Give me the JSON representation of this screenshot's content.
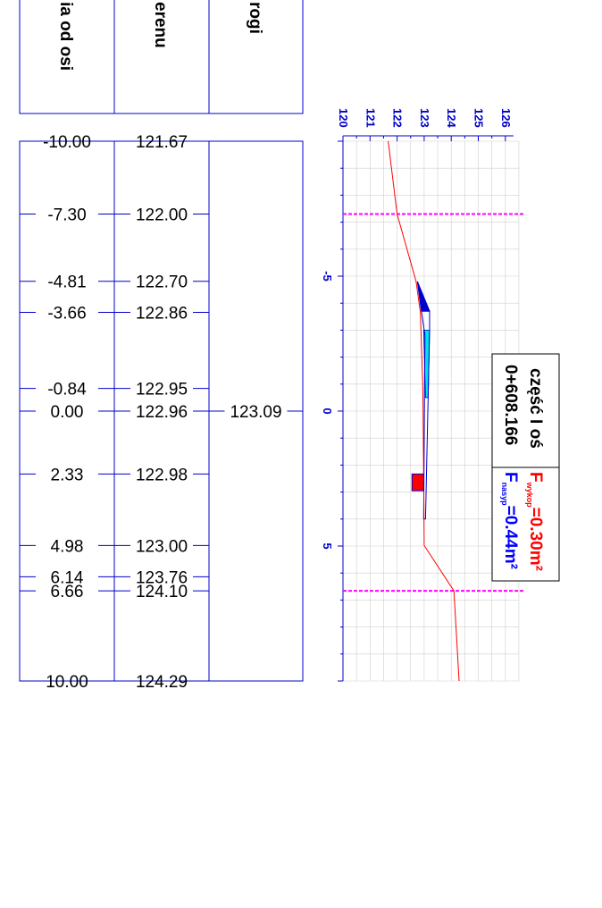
{
  "table": {
    "headers": [
      "ia od osi",
      "erenu",
      "rogi"
    ],
    "rows": [
      {
        "offset": "-10.00",
        "terrain": "121.67",
        "road": ""
      },
      {
        "offset": "-7.30",
        "terrain": "122.00",
        "road": ""
      },
      {
        "offset": "-4.81",
        "terrain": "122.70",
        "road": ""
      },
      {
        "offset": "-3.66",
        "terrain": "122.86",
        "road": ""
      },
      {
        "offset": "-0.84",
        "terrain": "122.95",
        "road": ""
      },
      {
        "offset": "0.00",
        "terrain": "122.96",
        "road": "123.09"
      },
      {
        "offset": "2.33",
        "terrain": "122.98",
        "road": ""
      },
      {
        "offset": "4.98",
        "terrain": "123.00",
        "road": ""
      },
      {
        "offset": "6.14",
        "terrain": "123.76",
        "road": ""
      },
      {
        "offset": "6.66",
        "terrain": "124.10",
        "road": ""
      },
      {
        "offset": "10.00",
        "terrain": "124.29",
        "road": ""
      }
    ]
  },
  "chart_data": {
    "type": "line",
    "x_ticks": [
      -5,
      0,
      5
    ],
    "x_tick_labels": [
      "-5",
      "0",
      "5"
    ],
    "xlim": [
      -10,
      10
    ],
    "y_ticks": [
      120,
      121,
      122,
      123,
      124,
      125,
      126
    ],
    "y_tick_labels": [
      "120",
      "121",
      "122",
      "123",
      "124",
      "125",
      "126"
    ],
    "ylim": [
      120,
      126.5
    ],
    "grid": true,
    "terrain": {
      "color": "#ff0000",
      "points": [
        [
          -10.0,
          121.67
        ],
        [
          -7.3,
          122.0
        ],
        [
          -4.81,
          122.7
        ],
        [
          -3.66,
          122.86
        ],
        [
          -0.84,
          122.95
        ],
        [
          0.0,
          122.96
        ],
        [
          2.33,
          122.98
        ],
        [
          4.98,
          123.0
        ],
        [
          6.14,
          123.76
        ],
        [
          6.66,
          124.1
        ],
        [
          10.0,
          124.29
        ]
      ]
    },
    "limits": {
      "color": "#ff00ff",
      "x": [
        -7.3,
        6.66
      ]
    },
    "road_outline": {
      "color": "#0000cc",
      "points": [
        [
          -4.8,
          122.75
        ],
        [
          -3.7,
          123.2
        ],
        [
          -3.0,
          123.2
        ],
        [
          4.0,
          123.05
        ],
        [
          4.0,
          122.98
        ],
        [
          -2.8,
          123.03
        ],
        [
          -3.7,
          122.9
        ],
        [
          -4.8,
          122.75
        ]
      ]
    },
    "cut_area": {
      "color": "#0000cc",
      "points": [
        [
          -4.8,
          122.75
        ],
        [
          -3.7,
          123.2
        ],
        [
          -3.7,
          122.9
        ]
      ]
    },
    "fill_area": {
      "color": "#00e5e5",
      "points": [
        [
          -3.0,
          122.98
        ],
        [
          -3.0,
          123.2
        ],
        [
          -0.5,
          123.15
        ],
        [
          -0.5,
          123.05
        ]
      ]
    },
    "marker": {
      "color": "#ff0000",
      "x": [
        2.33,
        2.95
      ],
      "y": [
        122.55,
        122.98
      ]
    }
  },
  "info": {
    "title": "część I oś",
    "station": "0+608.166",
    "cut_prefix": "F",
    "cut_sub": "wykop",
    "cut_value": "=0.30m²",
    "fill_prefix": "F",
    "fill_sub": "nasyp",
    "fill_value": "=0.44m²"
  }
}
